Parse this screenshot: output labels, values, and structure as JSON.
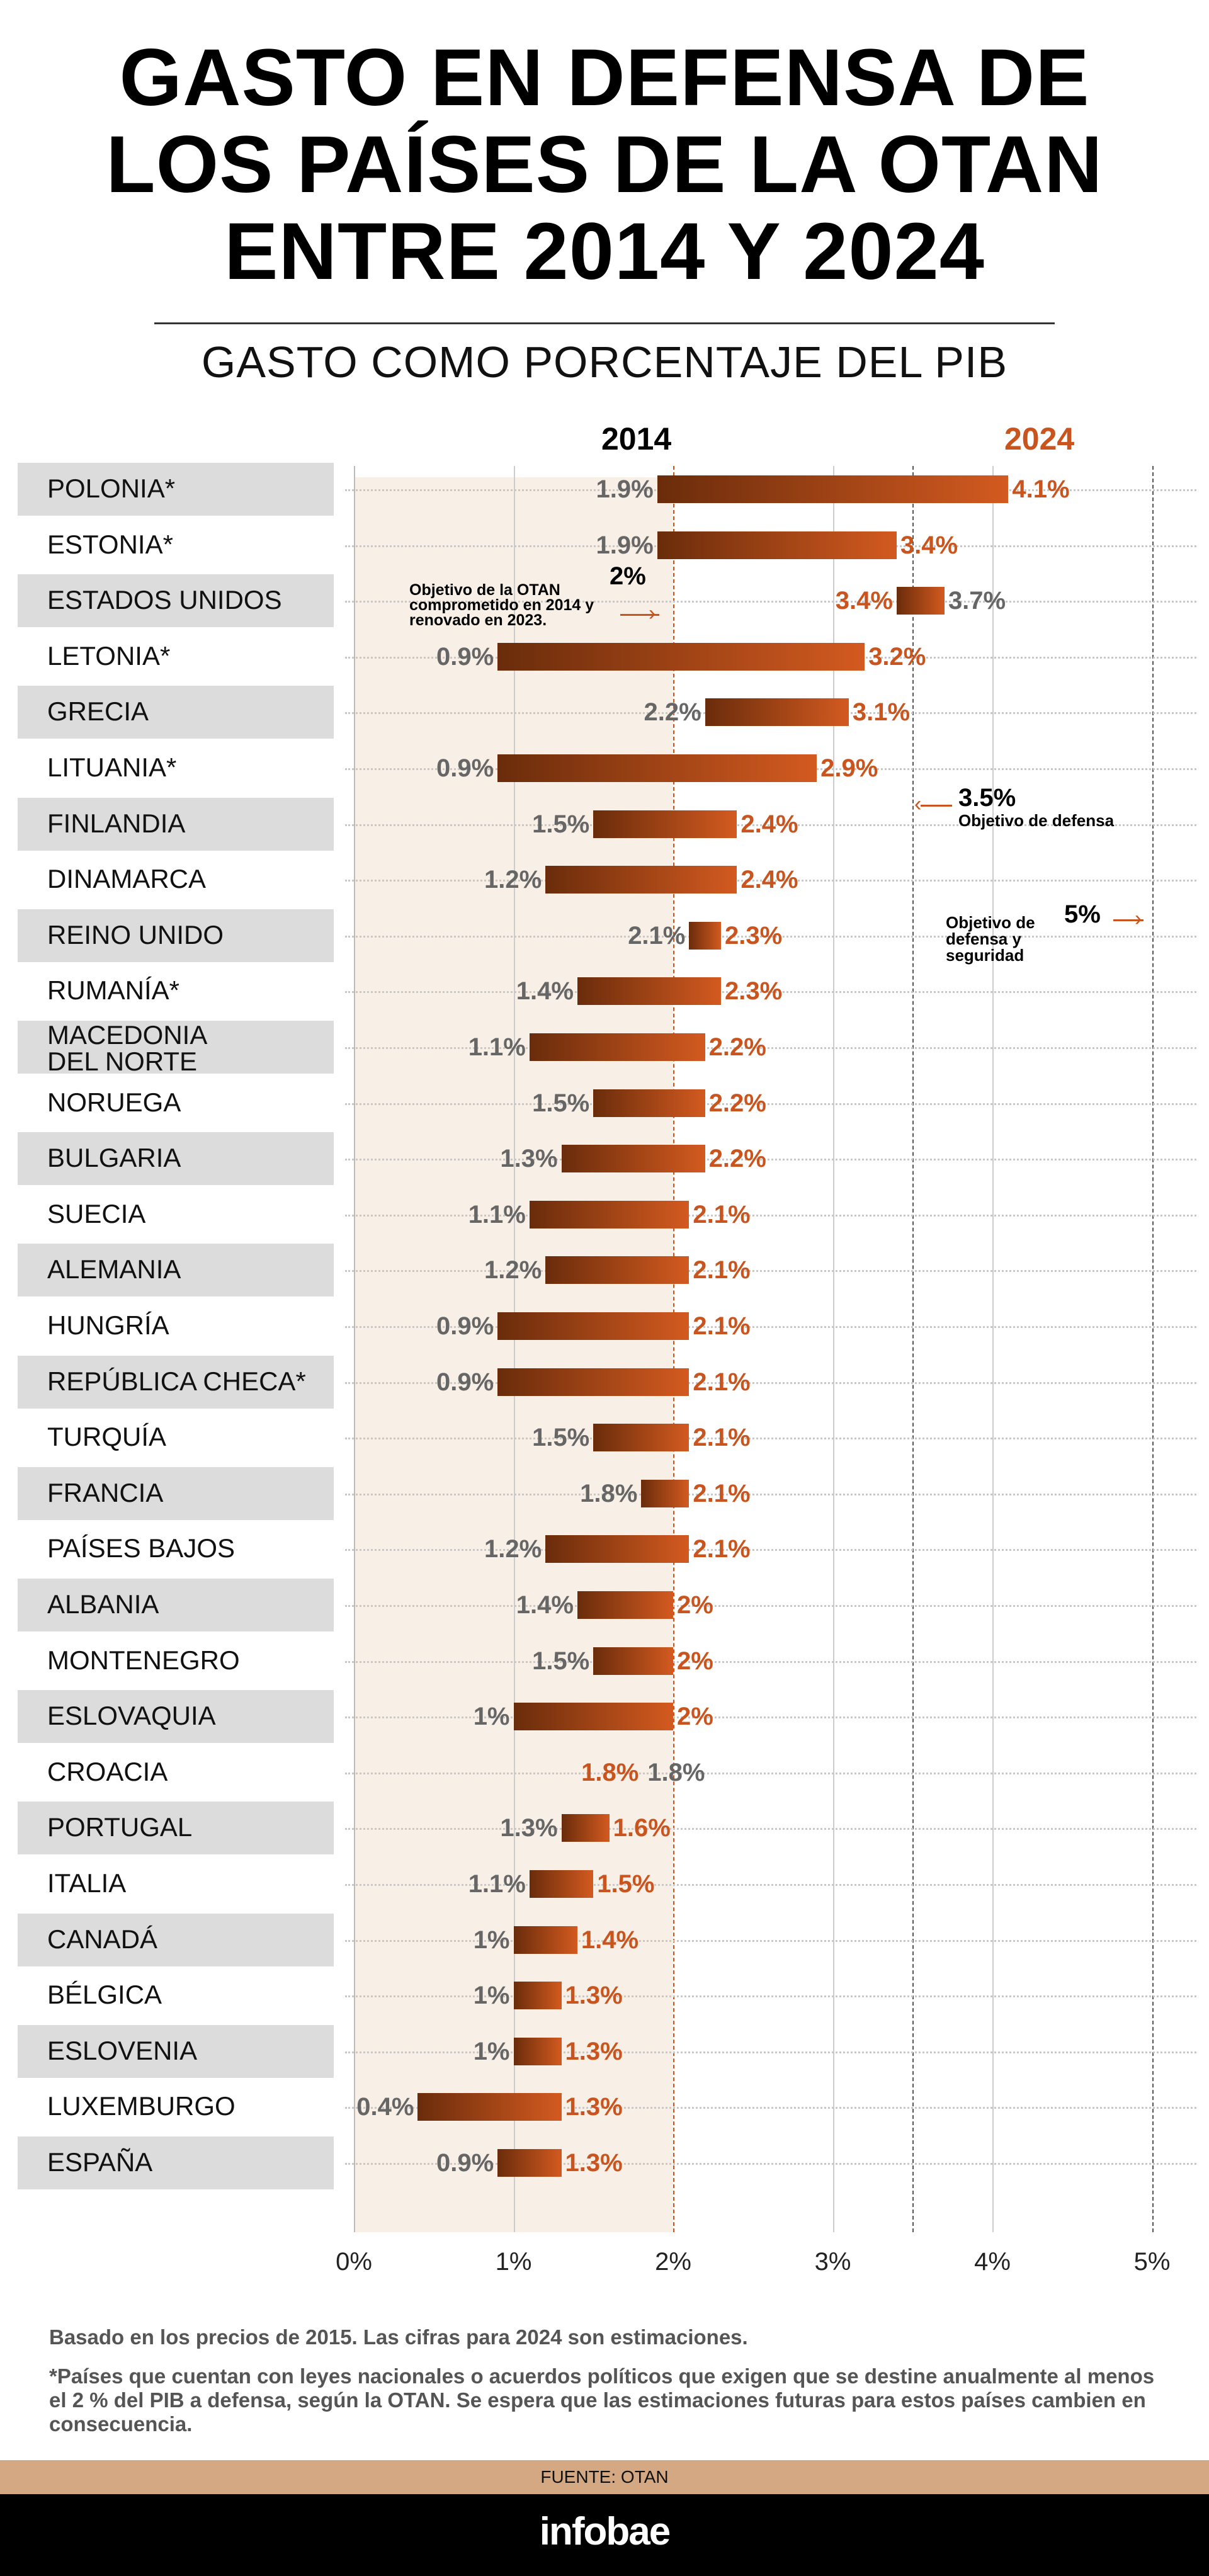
{
  "header": {
    "title_lines": [
      "GASTO EN DEFENSA DE",
      "LOS PAÍSES DE LA OTAN",
      "ENTRE 2014 Y 2024"
    ],
    "subtitle": "GASTO COMO PORCENTAJE DEL PIB"
  },
  "chart_data": {
    "type": "bar",
    "subtype": "dumbbell-range",
    "title": "GASTO EN DEFENSA DE LOS PAÍSES DE LA OTAN ENTRE 2014 Y 2024",
    "xlabel": "Gasto como porcentaje del PIB",
    "xlim": [
      0,
      5
    ],
    "x_ticks": [
      "0%",
      "1%",
      "2%",
      "3%",
      "4%",
      "5%"
    ],
    "legend": {
      "y2014": "2014",
      "y2024": "2024"
    },
    "colors": {
      "y2014": "#666666",
      "y2024": "#c9541d",
      "bar_start": "#6a2c0b",
      "bar_end": "#d35a20"
    },
    "countries": [
      {
        "name": "POLONIA*",
        "v2014": 1.9,
        "v2024": 4.1
      },
      {
        "name": "ESTONIA*",
        "v2014": 1.9,
        "v2024": 3.4
      },
      {
        "name": "ESTADOS UNIDOS",
        "v2014": 3.7,
        "v2024": 3.4
      },
      {
        "name": "LETONIA*",
        "v2014": 0.9,
        "v2024": 3.2
      },
      {
        "name": "GRECIA",
        "v2014": 2.2,
        "v2024": 3.1
      },
      {
        "name": "LITUANIA*",
        "v2014": 0.9,
        "v2024": 2.9
      },
      {
        "name": "FINLANDIA",
        "v2014": 1.5,
        "v2024": 2.4
      },
      {
        "name": "DINAMARCA",
        "v2014": 1.2,
        "v2024": 2.4
      },
      {
        "name": "REINO UNIDO",
        "v2014": 2.1,
        "v2024": 2.3
      },
      {
        "name": "RUMANÍA*",
        "v2014": 1.4,
        "v2024": 2.3
      },
      {
        "name": "MACEDONIA\nDEL NORTE",
        "v2014": 1.1,
        "v2024": 2.2
      },
      {
        "name": "NORUEGA",
        "v2014": 1.5,
        "v2024": 2.2
      },
      {
        "name": "BULGARIA",
        "v2014": 1.3,
        "v2024": 2.2
      },
      {
        "name": "SUECIA",
        "v2014": 1.1,
        "v2024": 2.1
      },
      {
        "name": "ALEMANIA",
        "v2014": 1.2,
        "v2024": 2.1
      },
      {
        "name": "HUNGRÍA",
        "v2014": 0.9,
        "v2024": 2.1
      },
      {
        "name": "REPÚBLICA CHECA*",
        "v2014": 0.9,
        "v2024": 2.1
      },
      {
        "name": "TURQUÍA",
        "v2014": 1.5,
        "v2024": 2.1
      },
      {
        "name": "FRANCIA",
        "v2014": 1.8,
        "v2024": 2.1
      },
      {
        "name": "PAÍSES BAJOS",
        "v2014": 1.2,
        "v2024": 2.1
      },
      {
        "name": "ALBANIA",
        "v2014": 1.4,
        "v2024": 2
      },
      {
        "name": "MONTENEGRO",
        "v2014": 1.5,
        "v2024": 2
      },
      {
        "name": "ESLOVAQUIA",
        "v2014": 1,
        "v2024": 2
      },
      {
        "name": "CROACIA",
        "v2014": 1.8,
        "v2024": 1.8
      },
      {
        "name": "PORTUGAL",
        "v2014": 1.3,
        "v2024": 1.6
      },
      {
        "name": "ITALIA",
        "v2014": 1.1,
        "v2024": 1.5
      },
      {
        "name": "CANADÁ",
        "v2014": 1,
        "v2024": 1.4
      },
      {
        "name": "BÉLGICA",
        "v2014": 1,
        "v2024": 1.3
      },
      {
        "name": "ESLOVENIA",
        "v2014": 1,
        "v2024": 1.3
      },
      {
        "name": "LUXEMBURGO",
        "v2014": 0.4,
        "v2024": 1.3
      },
      {
        "name": "ESPAÑA",
        "v2014": 0.9,
        "v2024": 1.3
      }
    ],
    "annotations": [
      {
        "value": 2,
        "label": "2%",
        "text": "Objetivo de la OTAN comprometido en 2014 y renovado en 2023."
      },
      {
        "value": 3.5,
        "label": "3.5%",
        "text": "Objetivo de defensa"
      },
      {
        "value": 5,
        "label": "5%",
        "text": "Objetivo de defensa y seguridad"
      }
    ]
  },
  "notes": {
    "line1": "Basado en los precios de 2015. Las cifras para 2024 son estimaciones.",
    "line2": "*Países que cuentan con leyes nacionales o acuerdos políticos que exigen que se destine anualmente al menos el 2 % del PIB a defensa, según la OTAN. Se espera que las estimaciones futuras para estos países cambien en consecuencia."
  },
  "source": "FUENTE: OTAN",
  "brand": "infobae"
}
